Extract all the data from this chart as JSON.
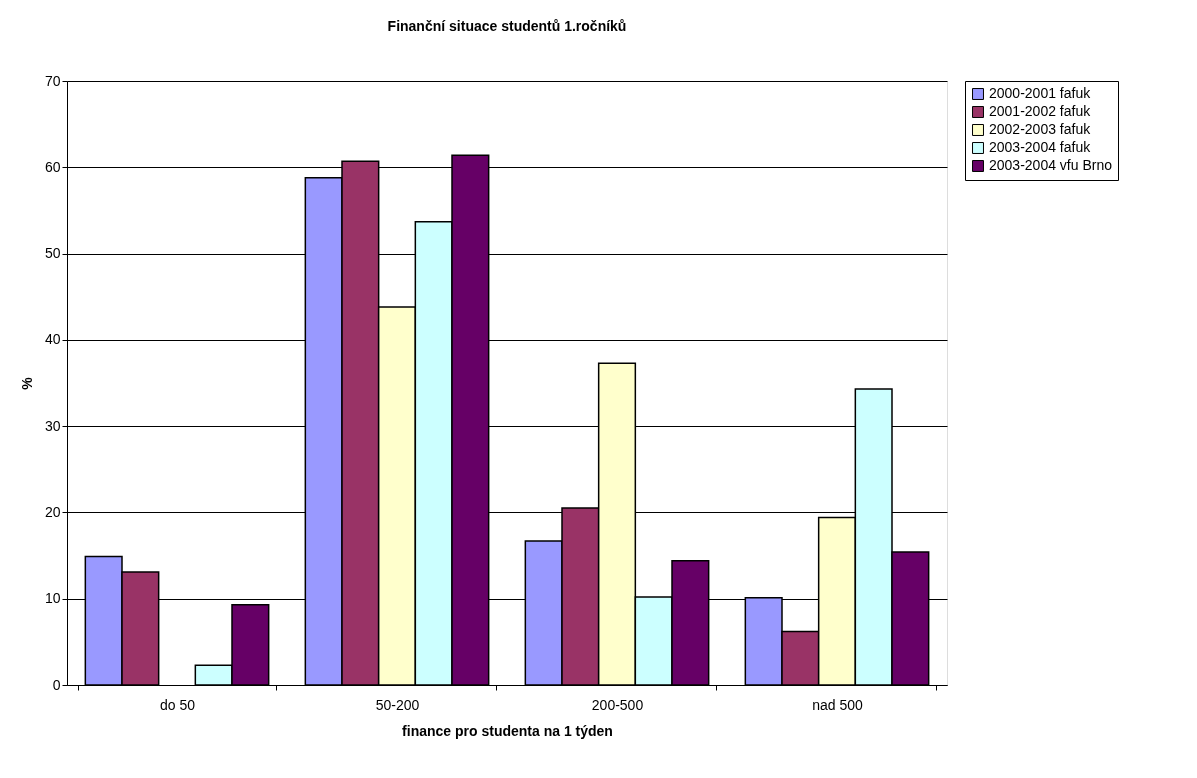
{
  "chart_data": {
    "type": "bar",
    "title": "Finanční situace studentů 1.ročníků",
    "xlabel": "finance pro studenta na 1 týden",
    "ylabel": "%",
    "categories": [
      "do 50",
      "50-200",
      "200-500",
      "nad 500"
    ],
    "series": [
      {
        "name": "2000-2001 fafuk",
        "color": "#9999ff",
        "values": [
          14.9,
          58.8,
          16.7,
          10.1
        ]
      },
      {
        "name": "2001-2002 fafuk",
        "color": "#993366",
        "values": [
          13.1,
          60.7,
          20.5,
          6.2
        ]
      },
      {
        "name": "2002-2003 fafuk",
        "color": "#ffffcc",
        "values": [
          null,
          43.8,
          37.3,
          19.4
        ]
      },
      {
        "name": "2003-2004 fafuk",
        "color": "#ccffff",
        "values": [
          2.3,
          53.7,
          10.2,
          34.3
        ]
      },
      {
        "name": "2003-2004 vfu Brno",
        "color": "#660066",
        "values": [
          9.3,
          61.4,
          14.4,
          15.4
        ]
      }
    ],
    "ylim": [
      0,
      70
    ],
    "yticks": [
      0,
      10,
      20,
      30,
      40,
      50,
      60,
      70
    ],
    "grid": "y",
    "legend": "right"
  }
}
